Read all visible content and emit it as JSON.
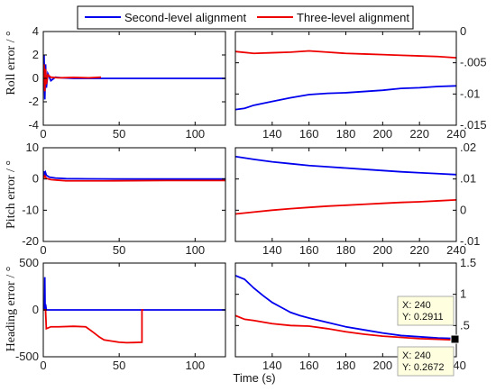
{
  "legend": {
    "items": [
      {
        "label": "Second-level alignment",
        "color": "#0000ee"
      },
      {
        "label": "Three-level alignment",
        "color": "#ee0000"
      }
    ]
  },
  "xlabel": "Time (s)",
  "datatips": [
    {
      "x_label": "X: 240",
      "y_label": "Y: 0.2911",
      "x": 240,
      "y": 0.2911
    },
    {
      "x_label": "X: 240",
      "y_label": "Y: 0.2672",
      "x": 240,
      "y": 0.2672
    }
  ],
  "chart_data": [
    {
      "type": "line",
      "ylabel": "Roll error / °",
      "xlim": [
        0,
        120
      ],
      "ylim": [
        -4,
        4
      ],
      "xticks": [
        0,
        50,
        100
      ],
      "yticks": [
        -4,
        -2,
        0,
        2,
        4
      ],
      "series": [
        {
          "name": "Second-level alignment",
          "color": "#0000ee",
          "x": [
            0,
            0.5,
            1,
            1.5,
            2,
            3,
            5,
            8,
            12,
            20,
            40,
            80,
            120
          ],
          "y": [
            0,
            2.0,
            -1.8,
            1.2,
            -0.8,
            0.4,
            -0.2,
            0.1,
            0.05,
            0,
            0,
            0,
            0
          ]
        },
        {
          "name": "Three-level alignment",
          "color": "#ee0000",
          "x": [
            0,
            0.5,
            1,
            1.5,
            2,
            3,
            5,
            10,
            20,
            30,
            38
          ],
          "y": [
            0,
            1.2,
            -1.1,
            0.8,
            -0.5,
            0.3,
            0.1,
            0.05,
            0.08,
            0.05,
            0.1
          ]
        }
      ]
    },
    {
      "type": "line",
      "xlim": [
        120,
        240
      ],
      "ylim": [
        -0.015,
        0
      ],
      "xticks": [
        140,
        160,
        180,
        200,
        220,
        240
      ],
      "yticks": [
        -0.015,
        -0.01,
        -0.005,
        0
      ],
      "series": [
        {
          "name": "Second-level alignment",
          "color": "#0000ee",
          "x": [
            120,
            125,
            130,
            140,
            150,
            160,
            170,
            180,
            190,
            200,
            210,
            220,
            230,
            240
          ],
          "y": [
            -0.0125,
            -0.0123,
            -0.0118,
            -0.0112,
            -0.0106,
            -0.0101,
            -0.0099,
            -0.0098,
            -0.0096,
            -0.0094,
            -0.0091,
            -0.009,
            -0.0088,
            -0.0087
          ]
        },
        {
          "name": "Three-level alignment",
          "color": "#ee0000",
          "x": [
            120,
            130,
            140,
            150,
            160,
            170,
            180,
            190,
            200,
            210,
            220,
            230,
            240
          ],
          "y": [
            -0.0032,
            -0.0035,
            -0.0034,
            -0.0033,
            -0.0031,
            -0.0033,
            -0.0035,
            -0.0036,
            -0.0037,
            -0.0038,
            -0.0039,
            -0.004,
            -0.0042
          ]
        }
      ]
    },
    {
      "type": "line",
      "ylabel": "Pitch error / °",
      "xlim": [
        0,
        120
      ],
      "ylim": [
        -20,
        10
      ],
      "xticks": [
        0,
        50,
        100
      ],
      "yticks": [
        -20,
        -10,
        0,
        10
      ],
      "series": [
        {
          "name": "Second-level alignment",
          "color": "#0000ee",
          "x": [
            0,
            0.5,
            1,
            1.5,
            2,
            4,
            8,
            15,
            30,
            60,
            120
          ],
          "y": [
            0,
            2.5,
            1.0,
            2.0,
            1.2,
            0.6,
            0.3,
            0.1,
            0.05,
            0,
            0
          ]
        },
        {
          "name": "Three-level alignment",
          "color": "#ee0000",
          "x": [
            0,
            1,
            2,
            5,
            10,
            15,
            40,
            80,
            120
          ],
          "y": [
            0,
            1.0,
            0.2,
            -0.2,
            -0.4,
            -0.6,
            -0.6,
            -0.5,
            -0.5
          ]
        }
      ]
    },
    {
      "type": "line",
      "xlim": [
        120,
        240
      ],
      "ylim": [
        -0.01,
        0.02
      ],
      "xticks": [
        140,
        160,
        180,
        200,
        220,
        240
      ],
      "yticks": [
        -0.01,
        0,
        0.01,
        0.02
      ],
      "series": [
        {
          "name": "Second-level alignment",
          "color": "#0000ee",
          "x": [
            120,
            130,
            140,
            150,
            160,
            170,
            180,
            190,
            200,
            210,
            220,
            230,
            240
          ],
          "y": [
            0.0172,
            0.0163,
            0.0155,
            0.0149,
            0.0143,
            0.0139,
            0.0135,
            0.0131,
            0.0127,
            0.0123,
            0.012,
            0.0117,
            0.0114
          ]
        },
        {
          "name": "Three-level alignment",
          "color": "#ee0000",
          "x": [
            120,
            130,
            140,
            150,
            160,
            170,
            180,
            190,
            200,
            210,
            220,
            230,
            240
          ],
          "y": [
            -0.0012,
            -0.0006,
            0.0,
            0.0005,
            0.0009,
            0.0013,
            0.0016,
            0.0019,
            0.0022,
            0.0025,
            0.0027,
            0.003,
            0.0033
          ]
        }
      ]
    },
    {
      "type": "line",
      "ylabel": "Heading error / °",
      "xlim": [
        0,
        120
      ],
      "ylim": [
        -500,
        500
      ],
      "xticks": [
        0,
        50,
        100
      ],
      "yticks": [
        -500,
        0,
        500
      ],
      "series": [
        {
          "name": "Second-level alignment",
          "color": "#0000ee",
          "x": [
            0,
            0.8,
            1,
            1.2,
            1.5,
            2,
            10,
            60,
            120
          ],
          "y": [
            0,
            0,
            350,
            0,
            60,
            0,
            0,
            0,
            0
          ]
        },
        {
          "name": "Three-level alignment",
          "color": "#ee0000",
          "x": [
            0,
            1.5,
            2,
            5,
            10,
            20,
            28,
            33,
            37,
            40,
            50,
            55,
            60,
            65,
            65,
            66
          ],
          "y": [
            0,
            0,
            -200,
            -180,
            -180,
            -175,
            -180,
            -240,
            -290,
            -320,
            -345,
            -350,
            -348,
            -345,
            0,
            0
          ]
        }
      ]
    },
    {
      "type": "line",
      "xlim": [
        120,
        240
      ],
      "ylim": [
        0,
        1.5
      ],
      "xticks": [
        140,
        160,
        180,
        200,
        220,
        240
      ],
      "yticks": [
        0.5,
        1,
        1.5
      ],
      "series": [
        {
          "name": "Second-level alignment",
          "color": "#0000ee",
          "x": [
            120,
            125,
            130,
            135,
            140,
            145,
            150,
            155,
            160,
            170,
            180,
            190,
            200,
            210,
            220,
            230,
            240
          ],
          "y": [
            1.3,
            1.24,
            1.1,
            0.98,
            0.87,
            0.79,
            0.71,
            0.66,
            0.62,
            0.55,
            0.48,
            0.43,
            0.38,
            0.34,
            0.32,
            0.3,
            0.2911
          ]
        },
        {
          "name": "Three-level alignment",
          "color": "#ee0000",
          "x": [
            120,
            125,
            130,
            140,
            150,
            160,
            170,
            180,
            190,
            200,
            210,
            220,
            230,
            240
          ],
          "y": [
            0.66,
            0.6,
            0.58,
            0.53,
            0.5,
            0.49,
            0.45,
            0.4,
            0.36,
            0.33,
            0.31,
            0.29,
            0.28,
            0.2672
          ]
        }
      ]
    }
  ]
}
